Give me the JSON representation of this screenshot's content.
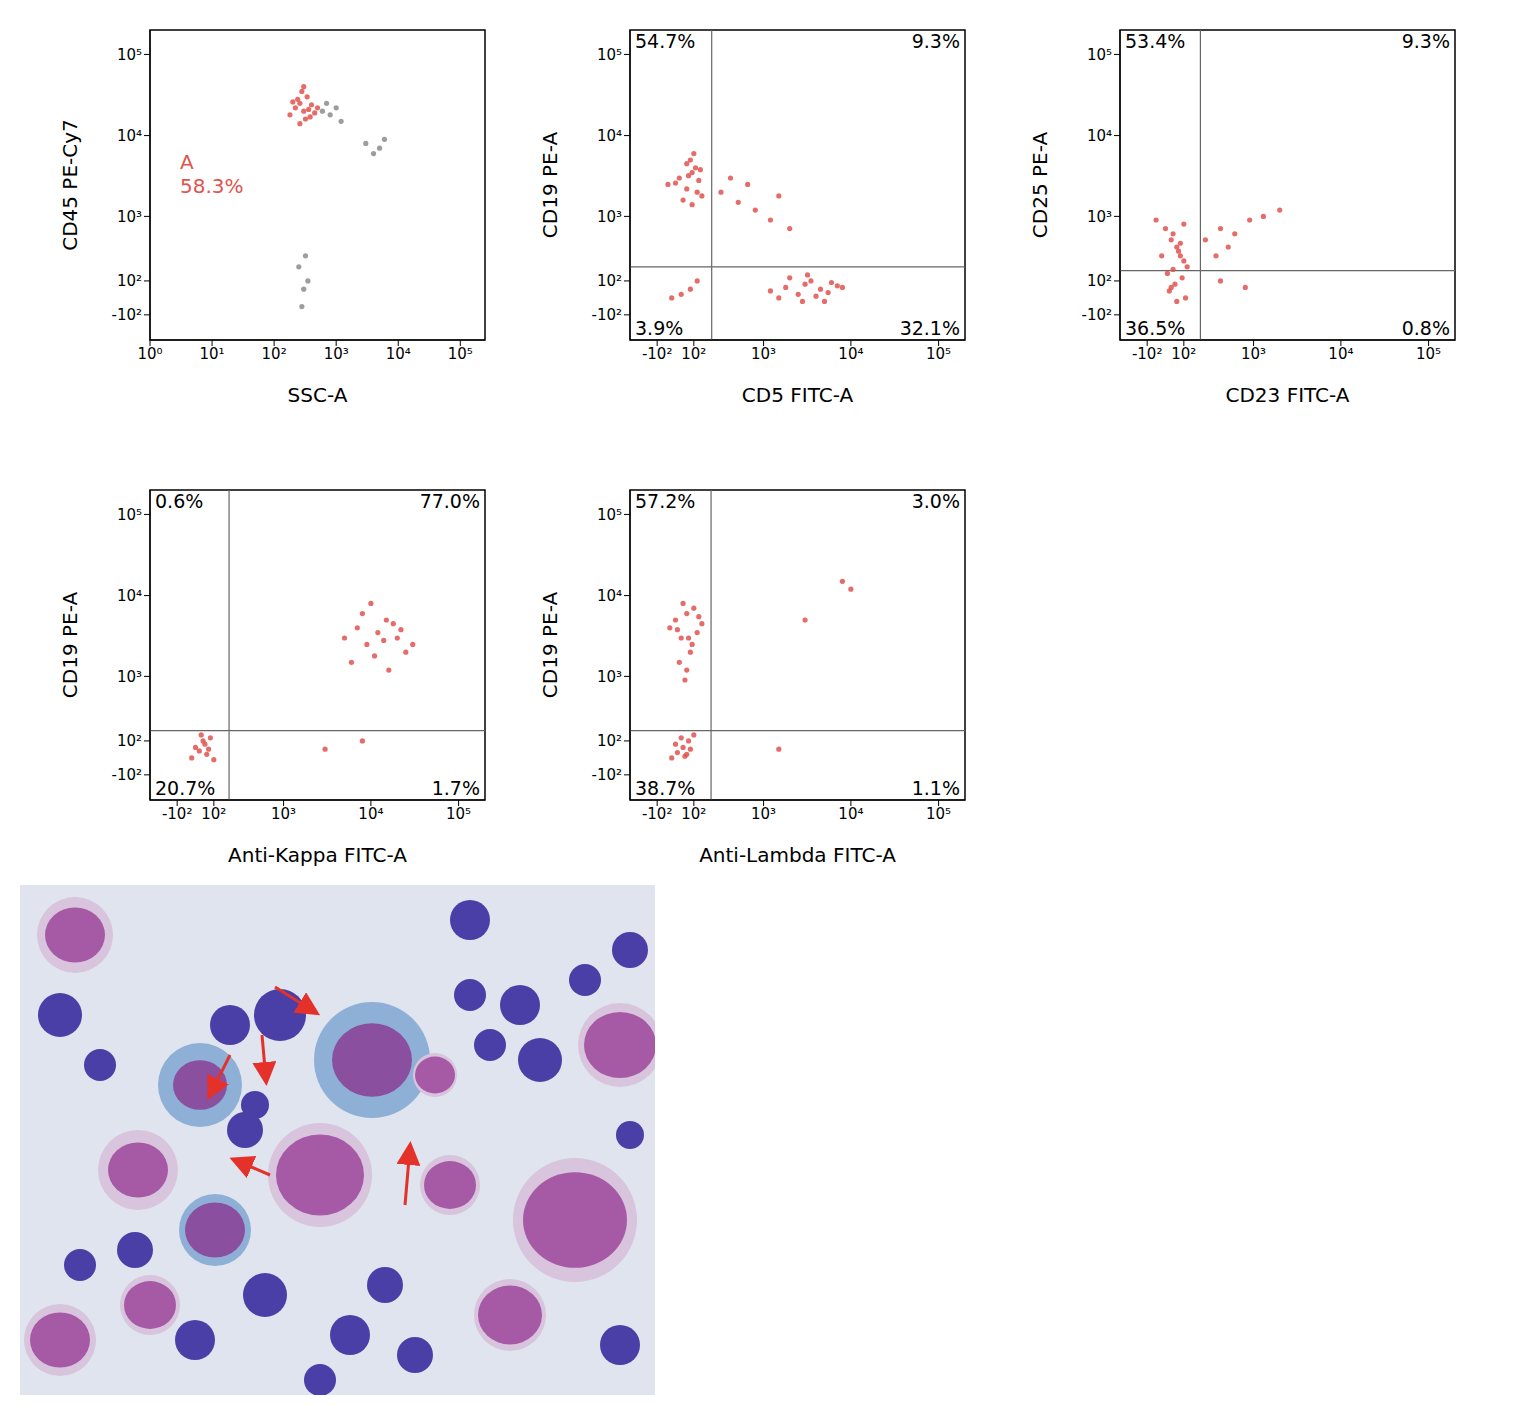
{
  "chart_data": [
    {
      "type": "scatter",
      "x_label": "SSC-A",
      "y_label": "CD45 PE-Cy7",
      "log": "x",
      "xlim": [
        1,
        250000
      ],
      "ylim": [
        -300,
        200000
      ],
      "xticks": [
        {
          "value": 1,
          "label": "10⁰"
        },
        {
          "value": 10,
          "label": "10¹"
        },
        {
          "value": 100,
          "label": "10²"
        },
        {
          "value": 1000,
          "label": "10³"
        },
        {
          "value": 10000,
          "label": "10⁴"
        },
        {
          "value": 100000,
          "label": "10⁵"
        }
      ],
      "yticks": [
        {
          "value": -100,
          "label": "-10²"
        },
        {
          "value": 100,
          "label": "10²"
        },
        {
          "value": 1000,
          "label": "10³"
        },
        {
          "value": 10000,
          "label": "10⁴"
        },
        {
          "value": 100000,
          "label": "10⁵"
        }
      ],
      "series": [
        {
          "color": "#8c8c8c",
          "x": [
            600,
            800,
            1000,
            700,
            3000,
            4000,
            5000,
            6000,
            250,
            300,
            350,
            320,
            280,
            1200
          ],
          "values": [
            20000,
            18000,
            22000,
            25000,
            8000,
            6000,
            7000,
            9000,
            200,
            50,
            100,
            300,
            -50,
            15000
          ]
        },
        {
          "color": "#e0544f",
          "x": [
            180,
            220,
            260,
            300,
            340,
            400,
            450,
            280,
            320,
            240,
            360,
            500,
            200,
            380,
            300,
            260
          ],
          "values": [
            18000,
            22000,
            25000,
            20000,
            30000,
            24000,
            19000,
            35000,
            16000,
            28000,
            21000,
            22000,
            26000,
            17000,
            40000,
            14000
          ]
        }
      ],
      "annotations": [
        "A",
        "58.3%"
      ]
    },
    {
      "type": "scatter",
      "x_label": "CD5 FITC-A",
      "y_label": "CD19 PE-A",
      "xlim": [
        -300,
        200000
      ],
      "ylim": [
        -300,
        200000
      ],
      "xticks": [
        {
          "value": -100,
          "label": "-10²"
        },
        {
          "value": 100,
          "label": "10²"
        },
        {
          "value": 1000,
          "label": "10³"
        },
        {
          "value": 10000,
          "label": "10⁴"
        },
        {
          "value": 100000,
          "label": "10⁵"
        }
      ],
      "yticks": [
        {
          "value": -100,
          "label": "-10²"
        },
        {
          "value": 100,
          "label": "10²"
        },
        {
          "value": 1000,
          "label": "10³"
        },
        {
          "value": 10000,
          "label": "10⁴"
        },
        {
          "value": 100000,
          "label": "10⁵"
        }
      ],
      "gates": {
        "x": 220,
        "y": 200
      },
      "quadrant_labels": {
        "upper_left": "54.7%",
        "upper_right": "9.3%",
        "lower_left": "3.9%",
        "lower_right": "32.1%"
      },
      "series": [
        {
          "color": "#e0544f",
          "x": [
            -40,
            20,
            60,
            90,
            110,
            130,
            150,
            80,
            40,
            100,
            70,
            120,
            0,
            60,
            90,
            140,
            300,
            500,
            800,
            1200,
            2000,
            400,
            650,
            1500,
            1200,
            1800,
            2500,
            3000,
            3500,
            4500,
            5500,
            7000,
            2000,
            2800,
            4000,
            6000,
            1500,
            3200,
            5000,
            8000,
            30,
            80,
            120,
            -20
          ],
          "values": [
            2500,
            3000,
            2200,
            3500,
            4000,
            2800,
            1800,
            5000,
            1600,
            6000,
            3200,
            2000,
            2600,
            4500,
            1400,
            3800,
            2000,
            1500,
            1200,
            900,
            700,
            3000,
            2500,
            1800,
            40,
            60,
            20,
            80,
            100,
            50,
            30,
            70,
            120,
            -20,
            10,
            90,
            0,
            140,
            -20,
            60,
            20,
            50,
            100,
            0
          ]
        }
      ]
    },
    {
      "type": "scatter",
      "x_label": "CD23 FITC-A",
      "y_label": "CD25 PE-A",
      "xlim": [
        -300,
        200000
      ],
      "ylim": [
        -300,
        200000
      ],
      "xticks": [
        {
          "value": -100,
          "label": "-10²"
        },
        {
          "value": 100,
          "label": "10²"
        },
        {
          "value": 1000,
          "label": "10³"
        },
        {
          "value": 10000,
          "label": "10⁴"
        },
        {
          "value": 100000,
          "label": "10⁵"
        }
      ],
      "yticks": [
        {
          "value": -100,
          "label": "-10²"
        },
        {
          "value": 100,
          "label": "10²"
        },
        {
          "value": 1000,
          "label": "10³"
        },
        {
          "value": 10000,
          "label": "10⁴"
        },
        {
          "value": 100000,
          "label": "10⁵"
        }
      ],
      "gates": {
        "x": 210,
        "y": 170
      },
      "quadrant_labels": {
        "upper_left": "53.4%",
        "upper_right": "9.3%",
        "lower_left": "36.5%",
        "lower_right": "0.8%"
      },
      "series": [
        {
          "color": "#e0544f",
          "x": [
            -50,
            0,
            30,
            60,
            80,
            100,
            120,
            40,
            70,
            10,
            90,
            50,
            20,
            110,
            60,
            30,
            -20,
            80,
            40,
            100,
            250,
            400,
            600,
            900,
            1300,
            2000,
            350,
            500,
            400,
            800
          ],
          "values": [
            900,
            700,
            500,
            400,
            300,
            250,
            200,
            600,
            350,
            150,
            120,
            80,
            40,
            0,
            -20,
            60,
            300,
            450,
            180,
            800,
            500,
            700,
            600,
            900,
            1000,
            1200,
            300,
            400,
            100,
            60
          ]
        }
      ]
    },
    {
      "type": "scatter",
      "x_label": "Anti-Kappa FITC-A",
      "y_label": "CD19 PE-A",
      "xlim": [
        -300,
        200000
      ],
      "ylim": [
        -300,
        200000
      ],
      "xticks": [
        {
          "value": -100,
          "label": "-10²"
        },
        {
          "value": 100,
          "label": "10²"
        },
        {
          "value": 1000,
          "label": "10³"
        },
        {
          "value": 10000,
          "label": "10⁴"
        },
        {
          "value": 100000,
          "label": "10⁵"
        }
      ],
      "yticks": [
        {
          "value": -100,
          "label": "-10²"
        },
        {
          "value": 100,
          "label": "10²"
        },
        {
          "value": 1000,
          "label": "10³"
        },
        {
          "value": 10000,
          "label": "10⁴"
        },
        {
          "value": 100000,
          "label": "10⁵"
        }
      ],
      "gates": {
        "x": 200,
        "y": 170
      },
      "quadrant_labels": {
        "upper_left": "0.6%",
        "upper_right": "77.0%",
        "lower_left": "20.7%",
        "lower_right": "1.7%"
      },
      "series": [
        {
          "color": "#e0544f",
          "x": [
            5000,
            7000,
            9000,
            12000,
            15000,
            20000,
            25000,
            8000,
            11000,
            14000,
            18000,
            30000,
            6000,
            10000,
            16000,
            22000,
            -20,
            20,
            50,
            80,
            100,
            40,
            0,
            60,
            30,
            70,
            3000,
            8000
          ],
          "values": [
            3000,
            4000,
            2500,
            3500,
            5000,
            3000,
            2000,
            6000,
            1800,
            2800,
            4500,
            2500,
            1500,
            8000,
            1200,
            3800,
            0,
            40,
            80,
            120,
            -10,
            100,
            60,
            20,
            140,
            50,
            50,
            100
          ]
        }
      ]
    },
    {
      "type": "scatter",
      "x_label": "Anti-Lambda FITC-A",
      "y_label": "CD19 PE-A",
      "xlim": [
        -300,
        200000
      ],
      "ylim": [
        -300,
        200000
      ],
      "xticks": [
        {
          "value": -100,
          "label": "-10²"
        },
        {
          "value": 100,
          "label": "10²"
        },
        {
          "value": 1000,
          "label": "10³"
        },
        {
          "value": 10000,
          "label": "10⁴"
        },
        {
          "value": 100000,
          "label": "10⁵"
        }
      ],
      "yticks": [
        {
          "value": -100,
          "label": "-10²"
        },
        {
          "value": 100,
          "label": "10²"
        },
        {
          "value": 1000,
          "label": "10³"
        },
        {
          "value": 10000,
          "label": "10⁴"
        },
        {
          "value": 100000,
          "label": "10⁵"
        }
      ],
      "gates": {
        "x": 215,
        "y": 170
      },
      "quadrant_labels": {
        "upper_left": "57.2%",
        "upper_right": "3.0%",
        "lower_left": "38.7%",
        "lower_right": "1.1%"
      },
      "series": [
        {
          "color": "#e0544f",
          "x": [
            -30,
            0,
            30,
            60,
            90,
            120,
            150,
            40,
            80,
            20,
            100,
            60,
            10,
            130,
            50,
            70,
            -20,
            10,
            40,
            70,
            100,
            30,
            60,
            0,
            80,
            50,
            3000,
            8000,
            10000,
            1500
          ],
          "values": [
            4000,
            5000,
            3000,
            6000,
            2500,
            3500,
            4500,
            8000,
            2000,
            1500,
            7000,
            1200,
            3800,
            5500,
            900,
            3000,
            0,
            30,
            60,
            100,
            140,
            120,
            20,
            80,
            50,
            10,
            5000,
            15000,
            12000,
            50
          ]
        }
      ]
    }
  ]
}
